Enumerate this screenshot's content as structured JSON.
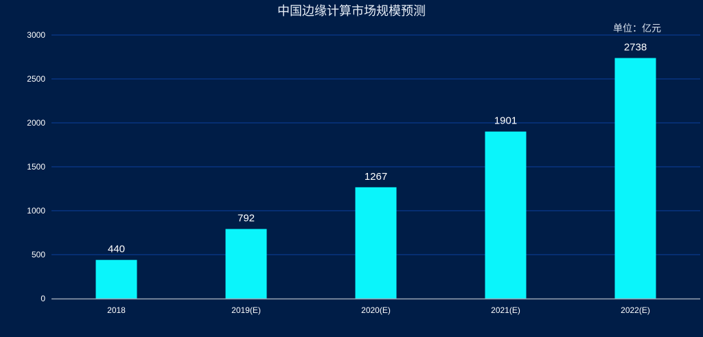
{
  "colors": {
    "background": "#001d47",
    "bar": "#0af5fb",
    "grid": "#0a3a8c",
    "axis": "#9aa5b5"
  },
  "chart_data": {
    "type": "bar",
    "title": "中国边缘计算市场规模预测",
    "unit_label": "单位：亿元",
    "categories": [
      "2018",
      "2019(E)",
      "2020(E)",
      "2021(E)",
      "2022(E)"
    ],
    "values": [
      440,
      792,
      1267,
      1901,
      2738
    ],
    "ylim": [
      0,
      3000
    ],
    "yticks": [
      0,
      500,
      1000,
      1500,
      2000,
      2500,
      3000
    ],
    "grid": true,
    "data_labels": true
  }
}
